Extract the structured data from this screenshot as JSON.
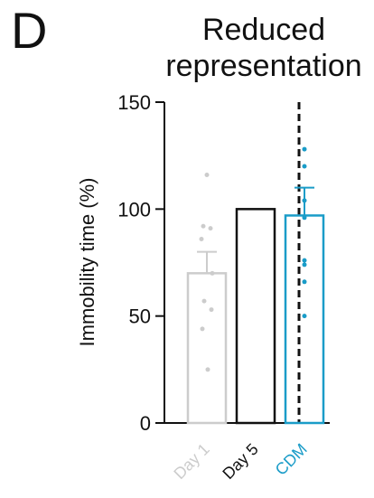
{
  "panel_letter": "D",
  "title_lines": [
    "Reduced",
    "representation"
  ],
  "colors": {
    "axis": "#111111",
    "day1": "#cccccc",
    "day5": "#111111",
    "cdm": "#1a9cc8"
  },
  "chart_data": {
    "type": "bar",
    "title": "Reduced representation",
    "ylabel": "Immobility time (%)",
    "xlabel": "",
    "ylim": [
      0,
      150
    ],
    "yticks": [
      0,
      50,
      100,
      150
    ],
    "grid": false,
    "categories": [
      "Day 1",
      "Day 5",
      "CDM"
    ],
    "values": [
      70,
      100,
      97
    ],
    "errors": [
      10,
      0,
      13
    ],
    "points": [
      [
        116,
        92,
        91,
        86,
        70,
        57,
        53,
        44,
        25
      ],
      [],
      [
        128,
        120,
        104,
        96,
        76,
        74,
        66,
        50
      ]
    ],
    "divider_between": [
      "Day 5",
      "CDM"
    ]
  }
}
